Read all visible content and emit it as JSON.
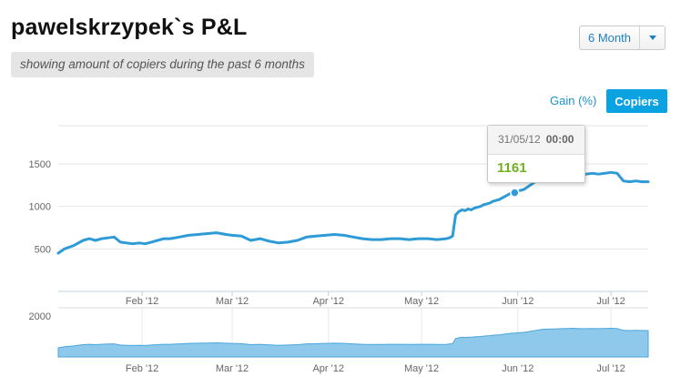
{
  "header": {
    "title": "pawelskrzypek`s P&L",
    "subtitle": "showing amount of copiers during the past 6 months"
  },
  "controls": {
    "period_value": "6 Month",
    "gain_label": "Gain (%)",
    "copiers_label": "Copiers",
    "accent_color": "#0aa2e0"
  },
  "tooltip": {
    "date": "31/05/12",
    "time": "00:00",
    "value": "1161"
  },
  "chart_data": {
    "type": "line",
    "title": "",
    "xlabel": "",
    "ylabel": "",
    "ylim": [
      0,
      1950
    ],
    "yticks": [
      "500",
      "1000",
      "1500"
    ],
    "navigator_ytick": "2000",
    "xticks": [
      "Feb '12",
      "Mar '12",
      "Apr '12",
      "May '12",
      "Jun '12",
      "Jul '12"
    ],
    "xtick_dates": [
      "2012-02-01",
      "2012-03-01",
      "2012-04-01",
      "2012-05-01",
      "2012-06-01",
      "2012-07-01"
    ],
    "xrange": [
      "2012-01-05",
      "2012-07-13"
    ],
    "line_color": "#2f9bd6",
    "area_color": "#8ec8ea",
    "grid": true,
    "highlight": {
      "date": "2012-05-31",
      "value": 1161
    },
    "series": [
      {
        "x": [
          "2012-01-05",
          "2012-01-07",
          "2012-01-10",
          "2012-01-13",
          "2012-01-15",
          "2012-01-17",
          "2012-01-19",
          "2012-01-21",
          "2012-01-23",
          "2012-01-25",
          "2012-01-27",
          "2012-01-29",
          "2012-01-31",
          "2012-02-02",
          "2012-02-04",
          "2012-02-06",
          "2012-02-08",
          "2012-02-10",
          "2012-02-13",
          "2012-02-16",
          "2012-02-19",
          "2012-02-22",
          "2012-02-25",
          "2012-02-28",
          "2012-03-01",
          "2012-03-04",
          "2012-03-07",
          "2012-03-10",
          "2012-03-13",
          "2012-03-16",
          "2012-03-19",
          "2012-03-22",
          "2012-03-25",
          "2012-03-28",
          "2012-03-31",
          "2012-04-03",
          "2012-04-06",
          "2012-04-09",
          "2012-04-12",
          "2012-04-15",
          "2012-04-18",
          "2012-04-21",
          "2012-04-24",
          "2012-04-27",
          "2012-04-30",
          "2012-05-03",
          "2012-05-06",
          "2012-05-09",
          "2012-05-10",
          "2012-05-11",
          "2012-05-12",
          "2012-05-13",
          "2012-05-14",
          "2012-05-15",
          "2012-05-16",
          "2012-05-17",
          "2012-05-18",
          "2012-05-19",
          "2012-05-20",
          "2012-05-21",
          "2012-05-22",
          "2012-05-23",
          "2012-05-24",
          "2012-05-25",
          "2012-05-26",
          "2012-05-27",
          "2012-05-28",
          "2012-05-29",
          "2012-05-30",
          "2012-05-31",
          "2012-06-01",
          "2012-06-03",
          "2012-06-05",
          "2012-06-07",
          "2012-06-09",
          "2012-06-11",
          "2012-06-13",
          "2012-06-15",
          "2012-06-17",
          "2012-06-19",
          "2012-06-21",
          "2012-06-23",
          "2012-06-25",
          "2012-06-27",
          "2012-06-29",
          "2012-07-01",
          "2012-07-03",
          "2012-07-05",
          "2012-07-07",
          "2012-07-09",
          "2012-07-11",
          "2012-07-13"
        ],
        "values": [
          450,
          500,
          540,
          600,
          620,
          600,
          620,
          630,
          640,
          580,
          570,
          560,
          570,
          560,
          580,
          600,
          620,
          620,
          640,
          660,
          670,
          680,
          690,
          670,
          660,
          650,
          600,
          620,
          590,
          570,
          580,
          600,
          640,
          650,
          660,
          670,
          660,
          640,
          620,
          610,
          610,
          620,
          620,
          610,
          620,
          620,
          610,
          620,
          630,
          650,
          900,
          940,
          960,
          950,
          970,
          960,
          980,
          990,
          1000,
          1020,
          1030,
          1040,
          1060,
          1070,
          1080,
          1100,
          1120,
          1140,
          1160,
          1161,
          1180,
          1200,
          1250,
          1300,
          1350,
          1360,
          1370,
          1380,
          1390,
          1400,
          1380,
          1380,
          1390,
          1380,
          1390,
          1400,
          1390,
          1300,
          1290,
          1300,
          1290,
          1290
        ]
      }
    ]
  }
}
